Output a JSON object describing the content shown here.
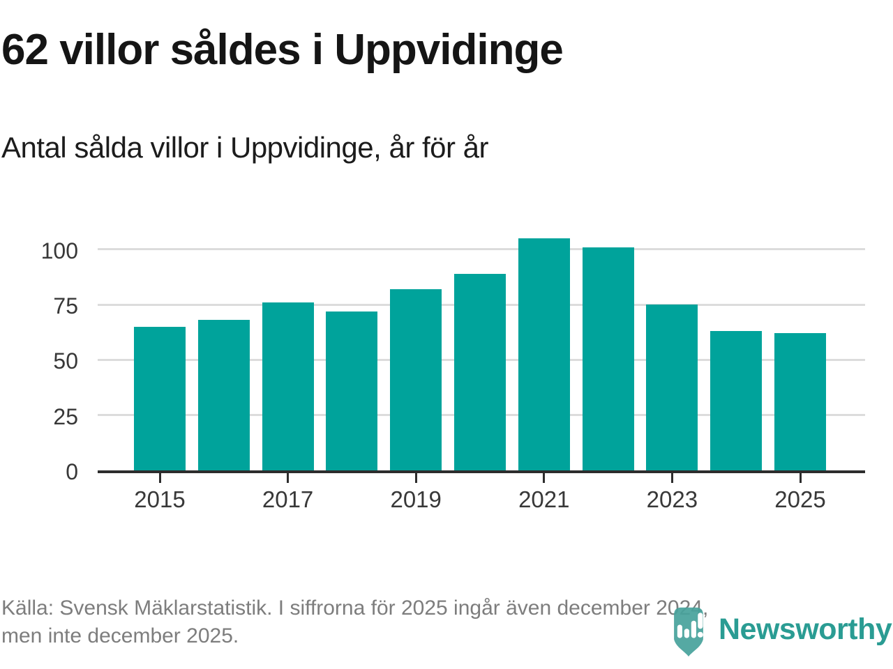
{
  "page": {
    "title": "62 villor såldes i Uppvidinge",
    "subtitle": "Antal sålda villor i Uppvidinge, år för år",
    "footer": {
      "line1": "Källa: Svensk Mäklarstatistik. I siffrorna för 2025 ingår även december 2024,",
      "line2": "men inte december 2025."
    },
    "logo": {
      "wordmark": "Newsworthy",
      "icon": "newsworthy-pin-barchart-icon"
    }
  },
  "colors": {
    "bar": "#00a39b",
    "gridline": "#dcdcdc",
    "axis": "#2d2d2d",
    "tick_label": "#383838",
    "title_text": "#151515",
    "footer_text": "#7d7d7d",
    "logo_teal": "#2a9c93",
    "logo_icon_fill": "#46a29b"
  },
  "chart_data": {
    "type": "bar",
    "title": "62 villor såldes i Uppvidinge",
    "subtitle": "Antal sålda villor i Uppvidinge, år för år",
    "categories": [
      "2015",
      "2016",
      "2017",
      "2018",
      "2019",
      "2020",
      "2021",
      "2022",
      "2023",
      "2024",
      "2025"
    ],
    "values": [
      65,
      68,
      76,
      72,
      82,
      89,
      105,
      101,
      75,
      63,
      62
    ],
    "xlabel": "",
    "ylabel": "",
    "ylim": [
      0,
      110
    ],
    "yticks": [
      0,
      25,
      50,
      75,
      100
    ],
    "xtick_labels": [
      "2015",
      "2017",
      "2019",
      "2021",
      "2023",
      "2025"
    ],
    "xtick_indices": [
      0,
      2,
      4,
      6,
      8,
      10
    ],
    "grid": "horizontal",
    "legend": "none",
    "source": "Källa: Svensk Mäklarstatistik. I siffrorna för 2025 ingår även december 2024, men inte december 2025."
  }
}
